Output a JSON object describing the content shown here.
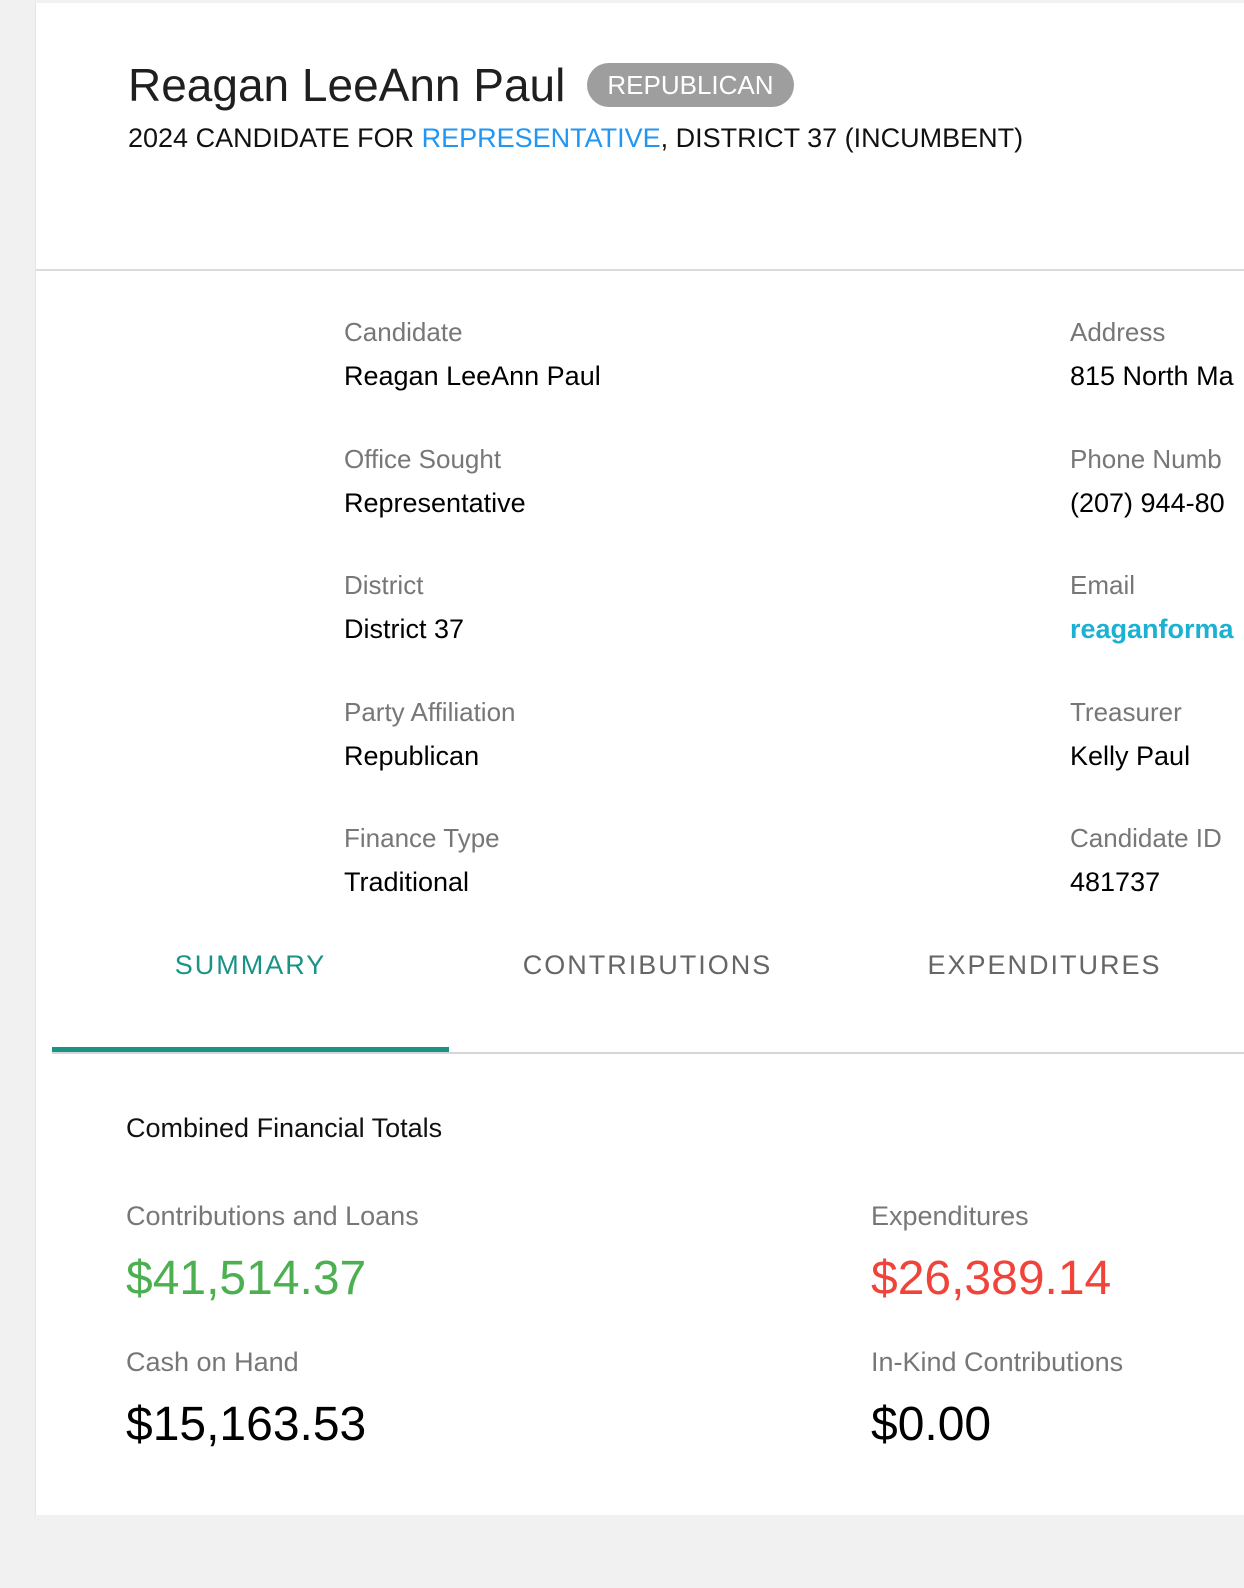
{
  "candidate_header": {
    "name": "Reagan LeeAnn Paul",
    "party_badge": "REPUBLICAN",
    "subtitle_prefix": "2024 CANDIDATE FOR ",
    "subtitle_office": "REPRESENTATIVE",
    "subtitle_suffix": ", DISTRICT 37 (INCUMBENT)"
  },
  "details_left": [
    {
      "label": "Candidate",
      "value": "Reagan LeeAnn Paul"
    },
    {
      "label": "Office Sought",
      "value": "Representative"
    },
    {
      "label": "District",
      "value": "District 37"
    },
    {
      "label": "Party Affiliation",
      "value": "Republican"
    },
    {
      "label": "Finance Type",
      "value": "Traditional"
    }
  ],
  "details_right": [
    {
      "label": "Address",
      "value": "815 North Ma"
    },
    {
      "label": "Phone Numb",
      "value": "(207) 944-80"
    },
    {
      "label": "Email",
      "value": "reaganforma"
    },
    {
      "label": "Treasurer",
      "value": "Kelly Paul"
    },
    {
      "label": "Candidate ID",
      "value": "481737"
    }
  ],
  "tabs": [
    "SUMMARY",
    "CONTRIBUTIONS",
    "EXPENDITURES"
  ],
  "active_tab": "SUMMARY",
  "summary": {
    "section_title": "Combined Financial Totals",
    "contributions_label": "Contributions and Loans",
    "contributions_value": "$41,514.37",
    "expenditures_label": "Expenditures",
    "expenditures_value": "$26,389.14",
    "cash_label": "Cash on Hand",
    "cash_value": "$15,163.53",
    "inkind_label": "In-Kind Contributions",
    "inkind_value": "$0.00"
  },
  "colors": {
    "accent": "#1a9387",
    "link": "#2196f3",
    "email": "#1ab1d3",
    "positive": "#4caf50",
    "negative": "#f0433a",
    "badge": "#9e9e9e"
  }
}
